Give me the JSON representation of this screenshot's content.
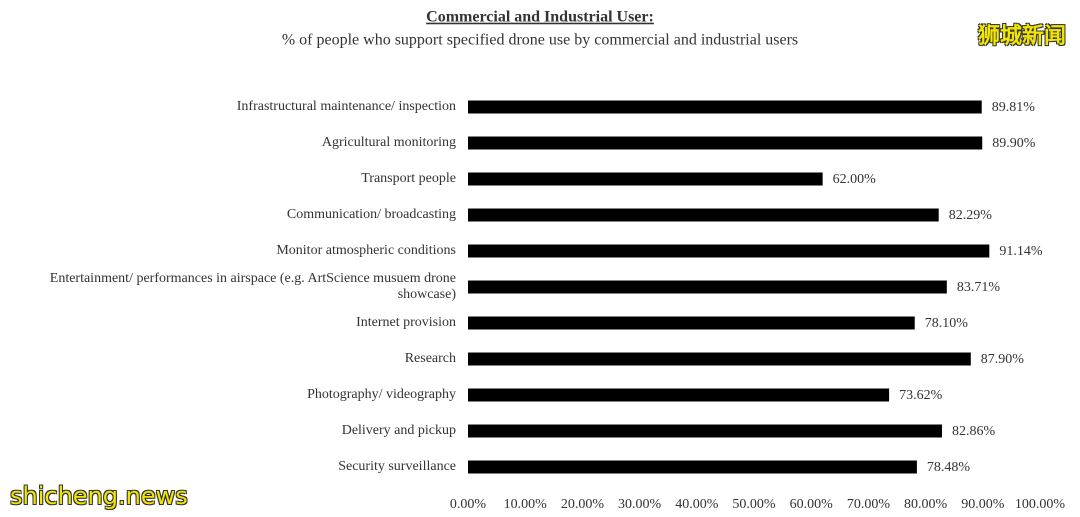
{
  "chart_data": {
    "type": "barh",
    "title": "Commercial and Industrial User:",
    "subtitle": "% of people who support specified drone use by commercial and industrial users",
    "categories": [
      "Infrastructural maintenance/ inspection",
      "Agricultural monitoring",
      "Transport people",
      "Communication/ broadcasting",
      "Monitor atmospheric conditions",
      "Entertainment/ performances in airspace (e.g. ArtScience musuem drone showcase)",
      "Internet provision",
      "Research",
      "Photography/ videography",
      "Delivery and pickup",
      "Security surveillance"
    ],
    "values": [
      89.81,
      89.9,
      62.0,
      82.29,
      91.14,
      83.71,
      78.1,
      87.9,
      73.62,
      82.86,
      78.48
    ],
    "value_labels": [
      "89.81%",
      "89.90%",
      "62.00%",
      "82.29%",
      "91.14%",
      "83.71%",
      "78.10%",
      "87.90%",
      "73.62%",
      "82.86%",
      "78.48%"
    ],
    "color": "#000000",
    "xlim": [
      0,
      100
    ],
    "xticks": [
      {
        "value": 0,
        "label": "0.00%"
      },
      {
        "value": 10,
        "label": "10.00%"
      },
      {
        "value": 20,
        "label": "20.00%"
      },
      {
        "value": 30,
        "label": "30.00%"
      },
      {
        "value": 40,
        "label": "40.00%"
      },
      {
        "value": 50,
        "label": "50.00%"
      },
      {
        "value": 60,
        "label": "60.00%"
      },
      {
        "value": 70,
        "label": "70.00%"
      },
      {
        "value": 80,
        "label": "80.00%"
      },
      {
        "value": 90,
        "label": "90.00%"
      },
      {
        "value": 100,
        "label": "100.00%"
      }
    ],
    "grid": false
  },
  "watermarks": [
    "狮城新闻",
    "shicheng.news"
  ]
}
